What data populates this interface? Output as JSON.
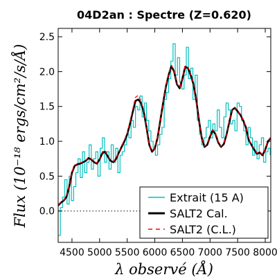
{
  "chart_data": {
    "type": "line",
    "title": "04D2an : Spectre (Z=0.620)",
    "xlabel": "λ observé (Å)",
    "ylabel": "Flux (10⁻¹⁸ ergs/cm²/s/Å)",
    "xlim": [
      4250,
      8100
    ],
    "ylim": [
      -0.45,
      2.62
    ],
    "xticks": [
      4500,
      5000,
      5500,
      6000,
      6500,
      7000,
      7500,
      8000
    ],
    "yticks": [
      0.0,
      0.5,
      1.0,
      1.5,
      2.0,
      2.5
    ],
    "ytick_labels": [
      "0.0",
      "0.5",
      "1.0",
      "1.5",
      "2.0",
      "2.5"
    ],
    "zero_line": true,
    "grid": false,
    "legend_position": "lower-right",
    "series": [
      {
        "name": "Extrait (15 A)",
        "color": "#00bfbf",
        "style": "steps",
        "x": [
          4250,
          4290,
          4330,
          4370,
          4410,
          4450,
          4490,
          4530,
          4570,
          4610,
          4650,
          4690,
          4730,
          4770,
          4810,
          4850,
          4890,
          4930,
          4970,
          5010,
          5050,
          5090,
          5130,
          5170,
          5210,
          5250,
          5290,
          5330,
          5370,
          5410,
          5450,
          5490,
          5530,
          5570,
          5610,
          5650,
          5690,
          5730,
          5770,
          5810,
          5850,
          5890,
          5930,
          5970,
          6010,
          6050,
          6090,
          6130,
          6170,
          6210,
          6250,
          6290,
          6330,
          6370,
          6410,
          6450,
          6490,
          6530,
          6570,
          6610,
          6650,
          6690,
          6730,
          6770,
          6810,
          6850,
          6890,
          6930,
          6970,
          7010,
          7050,
          7090,
          7130,
          7170,
          7210,
          7250,
          7290,
          7330,
          7370,
          7410,
          7450,
          7490,
          7530,
          7570,
          7610,
          7650,
          7690,
          7730,
          7770,
          7810,
          7850,
          7890,
          7930,
          7970,
          8010,
          8050,
          8090
        ],
        "y": [
          -0.35,
          0.05,
          0.2,
          0.45,
          0.1,
          0.5,
          0.15,
          0.35,
          0.55,
          0.75,
          0.48,
          0.85,
          0.55,
          0.7,
          0.95,
          0.6,
          0.75,
          0.85,
          0.5,
          0.9,
          1.05,
          0.7,
          0.85,
          0.6,
          0.95,
          0.7,
          0.9,
          0.55,
          0.8,
          0.85,
          0.95,
          1.1,
          1.05,
          1.3,
          1.2,
          1.5,
          1.45,
          1.65,
          1.35,
          1.55,
          1.3,
          1.15,
          1.0,
          0.9,
          0.8,
          0.95,
          1.1,
          1.2,
          1.6,
          1.7,
          1.9,
          2.15,
          2.4,
          1.95,
          2.2,
          1.85,
          1.75,
          1.95,
          2.35,
          1.9,
          2.05,
          1.6,
          1.95,
          1.3,
          1.1,
          0.95,
          1.05,
          1.2,
          1.3,
          1.05,
          1.25,
          1.15,
          1.45,
          1.2,
          1.05,
          1.35,
          1.55,
          1.45,
          1.25,
          1.3,
          1.15,
          1.55,
          1.5,
          1.3,
          1.15,
          0.95,
          1.2,
          1.05,
          0.8,
          1.0,
          0.75,
          0.95,
          1.05,
          0.7,
          0.85,
          0.9,
          0.8
        ]
      },
      {
        "name": "SALT2 Cal.",
        "color": "#000000",
        "style": "smooth",
        "x": [
          4250,
          4300,
          4350,
          4400,
          4450,
          4500,
          4550,
          4600,
          4650,
          4700,
          4750,
          4800,
          4850,
          4900,
          4950,
          5000,
          5050,
          5100,
          5150,
          5200,
          5250,
          5300,
          5350,
          5400,
          5450,
          5500,
          5550,
          5600,
          5650,
          5700,
          5750,
          5800,
          5850,
          5900,
          5950,
          6000,
          6050,
          6100,
          6150,
          6200,
          6250,
          6300,
          6350,
          6400,
          6450,
          6500,
          6550,
          6600,
          6650,
          6700,
          6750,
          6800,
          6850,
          6900,
          6950,
          7000,
          7050,
          7100,
          7150,
          7200,
          7250,
          7300,
          7350,
          7400,
          7450,
          7500,
          7550,
          7600,
          7650,
          7700,
          7750,
          7800,
          7850,
          7900,
          7950,
          8000,
          8050,
          8100
        ],
        "y": [
          0.08,
          0.12,
          0.15,
          0.2,
          0.35,
          0.55,
          0.65,
          0.67,
          0.68,
          0.7,
          0.72,
          0.76,
          0.74,
          0.7,
          0.68,
          0.74,
          0.83,
          0.85,
          0.78,
          0.72,
          0.7,
          0.75,
          0.84,
          0.92,
          1.0,
          1.1,
          1.25,
          1.42,
          1.58,
          1.6,
          1.55,
          1.42,
          1.2,
          0.95,
          0.85,
          0.9,
          1.05,
          1.3,
          1.55,
          1.78,
          1.95,
          2.08,
          2.0,
          1.82,
          1.76,
          1.9,
          2.07,
          2.05,
          1.95,
          1.82,
          1.6,
          1.3,
          1.05,
          0.92,
          0.95,
          1.07,
          1.16,
          1.1,
          0.98,
          0.92,
          0.96,
          1.1,
          1.28,
          1.45,
          1.48,
          1.43,
          1.38,
          1.3,
          1.2,
          1.02,
          0.95,
          0.88,
          0.82,
          0.84,
          0.8,
          0.88,
          1.0,
          1.05
        ]
      },
      {
        "name": "SALT2 (C.L.)",
        "color": "#ff0000",
        "style": "dashed",
        "x": [
          4250,
          4300,
          4350,
          4400,
          4450,
          4500,
          4550,
          4600,
          4650,
          4700,
          4750,
          4800,
          4850,
          4900,
          4950,
          5000,
          5050,
          5100,
          5150,
          5200,
          5250,
          5300,
          5350,
          5400,
          5450,
          5500,
          5550,
          5600,
          5650,
          5700,
          5750,
          5800,
          5850,
          5900,
          5950,
          6000,
          6050,
          6100,
          6150,
          6200,
          6250,
          6300,
          6350,
          6400,
          6450,
          6500,
          6550,
          6600,
          6650,
          6700,
          6750,
          6800,
          6850,
          6900,
          6950,
          7000,
          7050,
          7100,
          7150,
          7200,
          7250,
          7300,
          7350,
          7400,
          7450,
          7500,
          7550,
          7600,
          7650,
          7700,
          7750,
          7800,
          7850,
          7900,
          7950,
          8000,
          8050,
          8100
        ],
        "y": [
          0.09,
          0.13,
          0.16,
          0.21,
          0.36,
          0.56,
          0.66,
          0.68,
          0.69,
          0.71,
          0.73,
          0.77,
          0.75,
          0.71,
          0.69,
          0.75,
          0.85,
          0.87,
          0.79,
          0.73,
          0.71,
          0.76,
          0.85,
          0.94,
          1.02,
          1.12,
          1.28,
          1.46,
          1.63,
          1.66,
          1.58,
          1.43,
          1.21,
          0.96,
          0.86,
          0.91,
          1.06,
          1.31,
          1.56,
          1.79,
          1.96,
          2.09,
          2.01,
          1.83,
          1.77,
          1.92,
          2.09,
          2.06,
          1.96,
          1.83,
          1.6,
          1.3,
          1.05,
          0.93,
          0.96,
          1.08,
          1.17,
          1.11,
          0.99,
          0.93,
          0.97,
          1.11,
          1.29,
          1.46,
          1.49,
          1.44,
          1.39,
          1.31,
          1.21,
          1.03,
          0.96,
          0.89,
          0.83,
          0.85,
          0.81,
          0.89,
          1.01,
          1.06
        ]
      }
    ]
  }
}
